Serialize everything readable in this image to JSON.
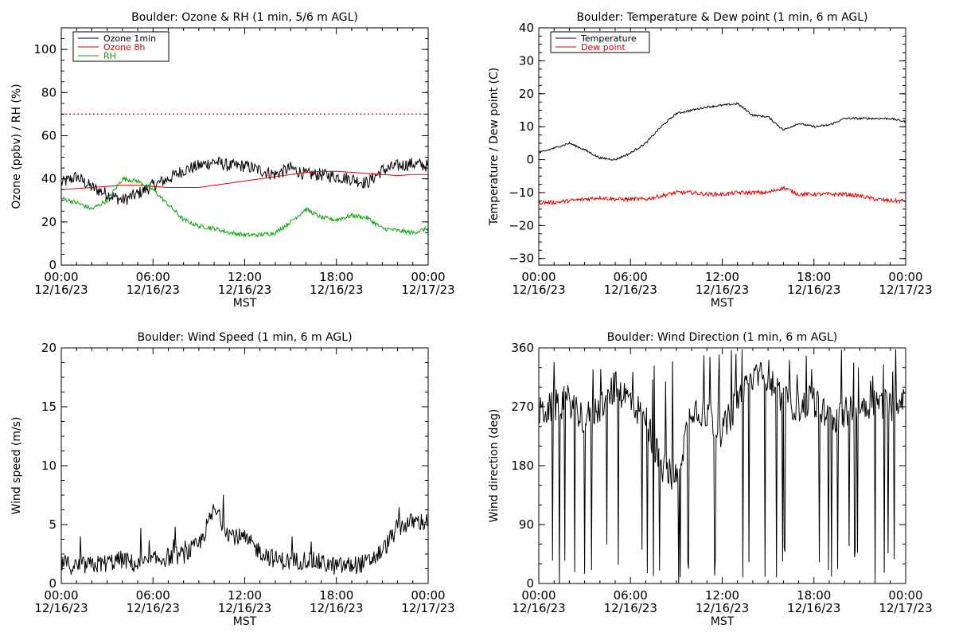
{
  "colors": {
    "black": "#000000",
    "red": "#dd0000",
    "green": "#00aa00"
  },
  "charts": [
    {
      "title": "Boulder: Ozone & RH (1 min, 5/6 m AGL)",
      "ylabel": "Ozone (ppbv) / RH (%)",
      "xlabel": "MST",
      "yticks": [
        "0",
        "20",
        "40",
        "60",
        "80",
        "100"
      ],
      "xticks": [
        {
          "time": "00:00",
          "date": "12/16/23"
        },
        {
          "time": "06:00",
          "date": "12/16/23"
        },
        {
          "time": "12:00",
          "date": "12/16/23"
        },
        {
          "time": "18:00",
          "date": "12/16/23"
        },
        {
          "time": "00:00",
          "date": "12/17/23"
        }
      ],
      "legend": [
        "Ozone 1min",
        "Ozone 8h",
        "RH"
      ]
    },
    {
      "title": "Boulder: Temperature & Dew point (1 min, 6 m AGL)",
      "ylabel": "Temperature / Dew point (C)",
      "xlabel": "MST",
      "yticks": [
        "−30",
        "−20",
        "−10",
        "0",
        "10",
        "20",
        "30",
        "40"
      ],
      "xticks": [
        {
          "time": "00:00",
          "date": "12/16/23"
        },
        {
          "time": "06:00",
          "date": "12/16/23"
        },
        {
          "time": "12:00",
          "date": "12/16/23"
        },
        {
          "time": "18:00",
          "date": "12/16/23"
        },
        {
          "time": "00:00",
          "date": "12/17/23"
        }
      ],
      "legend": [
        "Temperature",
        "Dew point"
      ]
    },
    {
      "title": "Boulder: Wind Speed (1 min, 6 m AGL)",
      "ylabel": "Wind speed (m/s)",
      "xlabel": "MST",
      "yticks": [
        "0",
        "5",
        "10",
        "15",
        "20"
      ],
      "xticks": [
        {
          "time": "00:00",
          "date": "12/16/23"
        },
        {
          "time": "06:00",
          "date": "12/16/23"
        },
        {
          "time": "12:00",
          "date": "12/16/23"
        },
        {
          "time": "18:00",
          "date": "12/16/23"
        },
        {
          "time": "00:00",
          "date": "12/17/23"
        }
      ]
    },
    {
      "title": "Boulder: Wind Direction (1 min, 6 m AGL)",
      "ylabel": "Wind direction (deg)",
      "xlabel": "MST",
      "yticks": [
        "0",
        "90",
        "180",
        "270",
        "360"
      ],
      "xticks": [
        {
          "time": "00:00",
          "date": "12/16/23"
        },
        {
          "time": "06:00",
          "date": "12/16/23"
        },
        {
          "time": "12:00",
          "date": "12/16/23"
        },
        {
          "time": "18:00",
          "date": "12/16/23"
        },
        {
          "time": "00:00",
          "date": "12/17/23"
        }
      ]
    }
  ],
  "chart_data": [
    {
      "type": "line",
      "title": "Boulder: Ozone & RH (1 min, 5/6 m AGL)",
      "xlabel": "MST",
      "ylabel": "Ozone (ppbv) / RH (%)",
      "x_unit": "hours since 12/16/23 00:00 MST",
      "xlim": [
        0,
        24
      ],
      "ylim": [
        0,
        110
      ],
      "grid": false,
      "legend_position": "top-left",
      "reference_lines": [
        {
          "y": 70,
          "style": "dotted",
          "color": "#dd0000"
        }
      ],
      "x": [
        0,
        1,
        2,
        3,
        4,
        5,
        6,
        7,
        8,
        9,
        10,
        11,
        12,
        13,
        14,
        15,
        16,
        17,
        18,
        19,
        20,
        21,
        22,
        23,
        24
      ],
      "series": [
        {
          "name": "Ozone 1min",
          "color": "#000000",
          "noise": 3,
          "values": [
            38,
            41,
            36,
            33,
            30,
            33,
            37,
            40,
            44,
            46,
            48,
            46,
            46,
            44,
            42,
            45,
            42,
            42,
            41,
            40,
            38,
            44,
            46,
            47,
            46
          ]
        },
        {
          "name": "Ozone 8h",
          "color": "#dd0000",
          "noise": 0,
          "values": [
            35,
            35.5,
            36,
            36.5,
            37,
            37,
            36.5,
            36,
            36,
            36,
            37,
            38,
            39,
            40,
            41,
            42,
            43,
            43.5,
            43.5,
            43,
            42.5,
            42,
            41.5,
            42,
            42
          ]
        },
        {
          "name": "RH",
          "color": "#00aa00",
          "noise": 1,
          "values": [
            31,
            29,
            26,
            30,
            40,
            39,
            35,
            28,
            21,
            18,
            17,
            15,
            14,
            14,
            15,
            20,
            26,
            22,
            21,
            23,
            22,
            17,
            16,
            15,
            17
          ]
        }
      ]
    },
    {
      "type": "line",
      "title": "Boulder: Temperature & Dew point (1 min, 6 m AGL)",
      "xlabel": "MST",
      "ylabel": "Temperature / Dew point (C)",
      "x_unit": "hours since 12/16/23 00:00 MST",
      "xlim": [
        0,
        24
      ],
      "ylim": [
        -32,
        40
      ],
      "grid": false,
      "legend_position": "top-left",
      "x": [
        0,
        1,
        2,
        3,
        4,
        5,
        6,
        7,
        8,
        9,
        10,
        11,
        12,
        13,
        14,
        15,
        16,
        17,
        18,
        19,
        20,
        21,
        22,
        23,
        24
      ],
      "series": [
        {
          "name": "Temperature",
          "color": "#000000",
          "noise": 0.3,
          "values": [
            2,
            3.5,
            5,
            3,
            0.5,
            0,
            2,
            5,
            10,
            14,
            15,
            16,
            16.5,
            17,
            13.5,
            13,
            9,
            11,
            10,
            10.5,
            12.5,
            12.5,
            12.5,
            12.5,
            11.5
          ]
        },
        {
          "name": "Dew point",
          "color": "#dd0000",
          "noise": 0.6,
          "values": [
            -13,
            -13,
            -12.5,
            -12,
            -11.5,
            -12,
            -12,
            -12,
            -11,
            -10,
            -10,
            -10.5,
            -10.5,
            -10,
            -10,
            -10,
            -8.5,
            -10.5,
            -10.5,
            -10.5,
            -10.5,
            -11,
            -12,
            -12.5,
            -12.5
          ]
        }
      ]
    },
    {
      "type": "line",
      "title": "Boulder: Wind Speed (1 min, 6 m AGL)",
      "xlabel": "MST",
      "ylabel": "Wind speed (m/s)",
      "x_unit": "hours since 12/16/23 00:00 MST",
      "xlim": [
        0,
        24
      ],
      "ylim": [
        0,
        20
      ],
      "grid": false,
      "x": [
        0,
        1,
        2,
        3,
        4,
        5,
        6,
        7,
        8,
        9,
        10,
        11,
        12,
        13,
        14,
        15,
        16,
        17,
        18,
        19,
        20,
        21,
        22,
        23,
        24
      ],
      "series": [
        {
          "name": "",
          "color": "#000000",
          "noise": 0.8,
          "values": [
            1.5,
            1.2,
            1.3,
            1.5,
            1.8,
            1.3,
            1.7,
            2.0,
            2.2,
            3.0,
            6.0,
            4.0,
            3.5,
            2.5,
            1.8,
            1.6,
            1.8,
            1.5,
            1.2,
            1.3,
            1.5,
            2.5,
            4.5,
            5.0,
            5.0
          ]
        }
      ]
    },
    {
      "type": "line",
      "title": "Boulder: Wind Direction (1 min, 6 m AGL)",
      "xlabel": "MST",
      "ylabel": "Wind direction (deg)",
      "x_unit": "hours since 12/16/23 00:00 MST",
      "xlim": [
        0,
        24
      ],
      "ylim": [
        0,
        360
      ],
      "grid": false,
      "x": [
        0,
        1,
        2,
        3,
        4,
        5,
        6,
        7,
        8,
        9,
        10,
        11,
        12,
        13,
        14,
        15,
        16,
        17,
        18,
        19,
        20,
        21,
        22,
        23,
        24
      ],
      "series": [
        {
          "name": "",
          "color": "#000000",
          "noise": 25,
          "values": [
            260,
            270,
            280,
            250,
            270,
            300,
            280,
            250,
            180,
            160,
            270,
            260,
            230,
            280,
            310,
            320,
            280,
            270,
            280,
            250,
            260,
            270,
            280,
            270,
            290
          ]
        }
      ]
    }
  ]
}
